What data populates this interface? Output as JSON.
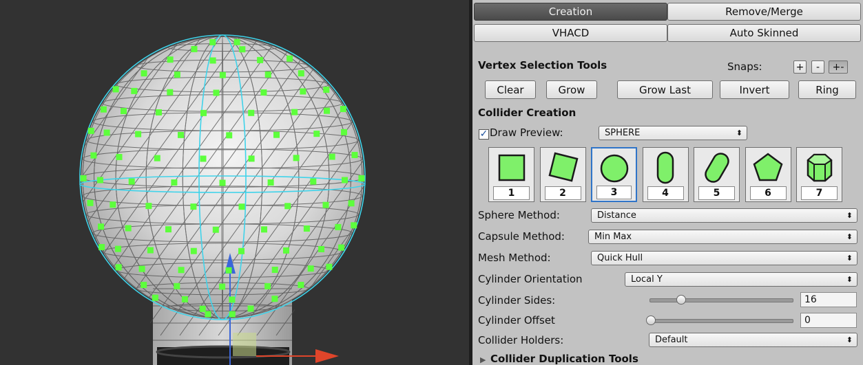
{
  "tabs_row1": [
    {
      "label": "Creation",
      "active": true
    },
    {
      "label": "Remove/Merge",
      "active": false
    }
  ],
  "tabs_row2": [
    {
      "label": "VHACD",
      "active": false
    },
    {
      "label": "Auto Skinned",
      "active": false
    }
  ],
  "vertex_tools": {
    "title": "Vertex Selection Tools",
    "snaps_label": "Snaps:",
    "snap_buttons": [
      "+",
      "-",
      "+-"
    ],
    "buttons": [
      "Clear",
      "Grow",
      "Grow Last",
      "Invert",
      "Ring"
    ]
  },
  "collider_creation": {
    "title": "Collider Creation",
    "draw_preview_label": "Draw Preview:",
    "draw_preview_checked": true,
    "preview_value": "SPHERE",
    "shapes": [
      {
        "num": "1",
        "icon": "box-icon"
      },
      {
        "num": "2",
        "icon": "rotated-box-icon"
      },
      {
        "num": "3",
        "icon": "sphere-icon",
        "selected": true
      },
      {
        "num": "4",
        "icon": "capsule-icon"
      },
      {
        "num": "5",
        "icon": "rotated-capsule-icon"
      },
      {
        "num": "6",
        "icon": "convex-mesh-icon"
      },
      {
        "num": "7",
        "icon": "cylinder-icon"
      }
    ],
    "sphere_method_label": "Sphere Method:",
    "sphere_method_value": "Distance",
    "capsule_method_label": "Capsule Method:",
    "capsule_method_value": "Min Max",
    "mesh_method_label": "Mesh Method:",
    "mesh_method_value": "Quick Hull",
    "cylinder_orientation_label": "Cylinder Orientation",
    "cylinder_orientation_value": "Local Y",
    "cylinder_sides_label": "Cylinder Sides:",
    "cylinder_sides_value": "16",
    "cylinder_offset_label": "Cylinder Offset",
    "cylinder_offset_value": "0",
    "collider_holders_label": "Collider Holders:",
    "collider_holders_value": "Default"
  },
  "duplication": {
    "title": "Collider Duplication Tools"
  },
  "colors": {
    "vertex_marker": "#5dff3c",
    "preview_wire": "#3fd3ea",
    "viewport_bg": "#323232",
    "selection_blue": "#2f74c8"
  }
}
